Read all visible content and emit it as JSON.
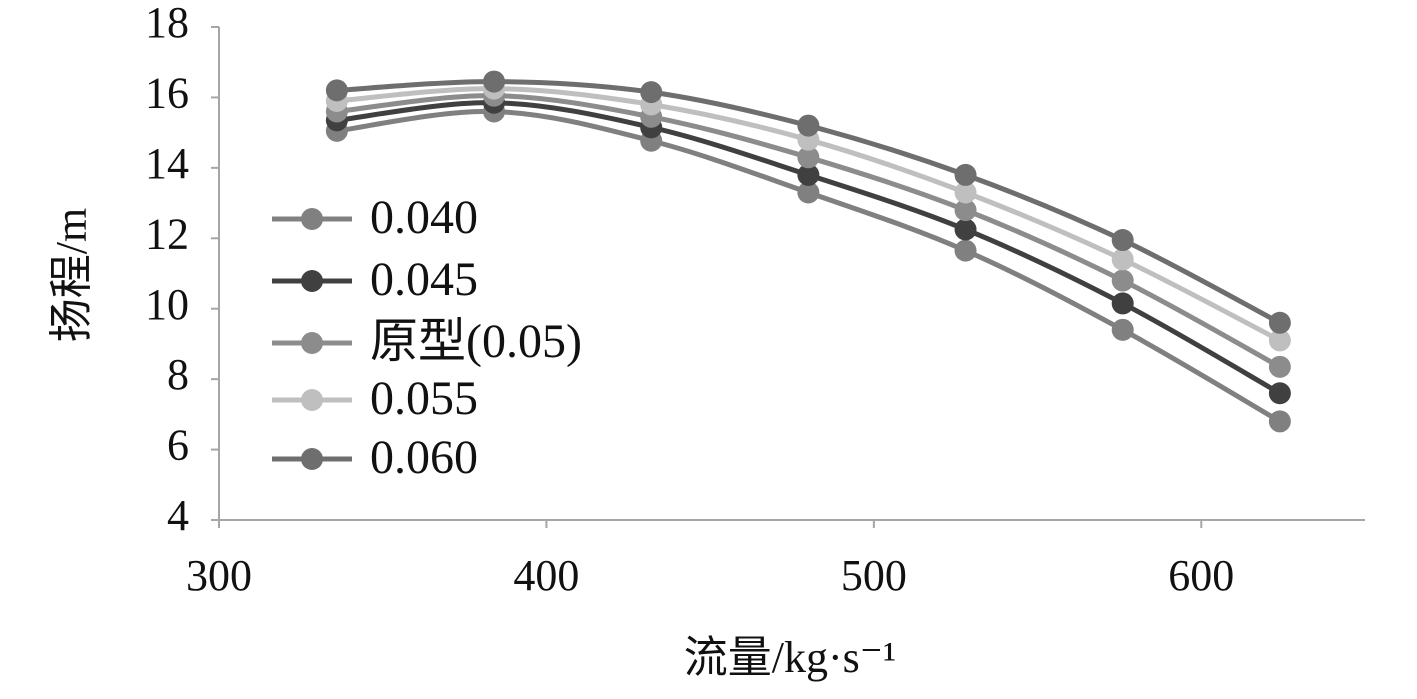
{
  "chart_data": {
    "type": "line",
    "x_label": "流量/kg·s⁻¹",
    "y_label": "扬程/m",
    "x": [
      336,
      384,
      432,
      480,
      528,
      576,
      624
    ],
    "series": [
      {
        "name": "0.040",
        "color": "#808080",
        "values": [
          15.05,
          15.6,
          14.77,
          13.3,
          11.65,
          9.4,
          6.8
        ]
      },
      {
        "name": "0.045",
        "color": "#404040",
        "values": [
          15.35,
          15.85,
          15.15,
          13.8,
          12.25,
          10.15,
          7.6
        ]
      },
      {
        "name": "原型(0.05)",
        "color": "#8c8c8c",
        "values": [
          15.6,
          16.05,
          15.45,
          14.3,
          12.8,
          10.8,
          8.35
        ]
      },
      {
        "name": "0.055",
        "color": "#bfbfbf",
        "values": [
          15.9,
          16.25,
          15.8,
          14.8,
          13.3,
          11.4,
          9.1
        ]
      },
      {
        "name": "0.060",
        "color": "#6e6e6e",
        "values": [
          16.2,
          16.45,
          16.15,
          15.2,
          13.8,
          11.95,
          9.6
        ]
      }
    ],
    "xlim": [
      300,
      650
    ],
    "xticks": [
      300,
      400,
      500,
      600
    ],
    "ylim": [
      4,
      18
    ],
    "yticks": [
      4,
      6,
      8,
      10,
      12,
      14,
      16,
      18
    ],
    "smooth": true,
    "grid": false,
    "legend": "left"
  }
}
